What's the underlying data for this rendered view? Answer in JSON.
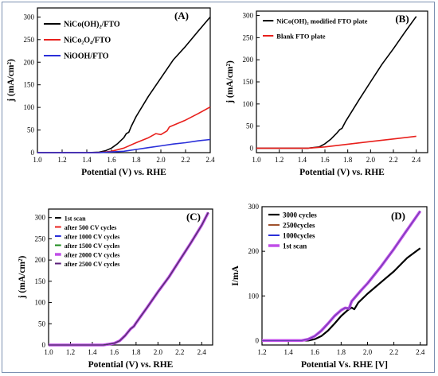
{
  "figure": {
    "border_color": "#7a8fb0"
  },
  "chart_data": [
    {
      "panel": "(A)",
      "type": "line",
      "xlabel": "Potential (V) vs. RHE",
      "ylabel": "j (mA/cm²)",
      "xlim": [
        1.0,
        2.4
      ],
      "ylim": [
        0,
        320
      ],
      "xticks": [
        "1.0",
        "1.2",
        "1.4",
        "1.6",
        "1.8",
        "2.0",
        "2.2",
        "2.4"
      ],
      "yticks": [
        "0",
        "50",
        "100",
        "150",
        "200",
        "250",
        "300"
      ],
      "legend_position": "top-left",
      "series": [
        {
          "name": "NiCo(OH)₂/FTO",
          "color": "#000000",
          "points": [
            [
              1.0,
              0
            ],
            [
              1.4,
              0
            ],
            [
              1.5,
              1
            ],
            [
              1.55,
              4
            ],
            [
              1.6,
              10
            ],
            [
              1.65,
              20
            ],
            [
              1.7,
              33
            ],
            [
              1.72,
              42
            ],
            [
              1.74,
              45
            ],
            [
              1.76,
              58
            ],
            [
              1.8,
              80
            ],
            [
              1.9,
              125
            ],
            [
              2.0,
              165
            ],
            [
              2.1,
              205
            ],
            [
              2.2,
              235
            ],
            [
              2.3,
              268
            ],
            [
              2.4,
              300
            ]
          ]
        },
        {
          "name": "NiCo₂O₄/FTO",
          "color": "#e8201c",
          "points": [
            [
              1.0,
              0
            ],
            [
              1.5,
              0
            ],
            [
              1.6,
              3
            ],
            [
              1.7,
              10
            ],
            [
              1.8,
              22
            ],
            [
              1.9,
              33
            ],
            [
              1.96,
              42
            ],
            [
              2.0,
              40
            ],
            [
              2.05,
              48
            ],
            [
              2.07,
              57
            ],
            [
              2.2,
              72
            ],
            [
              2.3,
              86
            ],
            [
              2.4,
              101
            ]
          ]
        },
        {
          "name": "NiOOH/FTO",
          "color": "#2a2fd9",
          "points": [
            [
              1.0,
              0
            ],
            [
              1.5,
              0
            ],
            [
              1.7,
              3
            ],
            [
              1.8,
              7
            ],
            [
              1.9,
              11
            ],
            [
              2.0,
              15
            ],
            [
              2.1,
              19
            ],
            [
              2.2,
              22
            ],
            [
              2.3,
              26
            ],
            [
              2.4,
              29
            ]
          ]
        }
      ]
    },
    {
      "panel": "(B)",
      "type": "line",
      "xlabel": "Potential (V) vs. RHE",
      "ylabel": "j (mA/cm²)",
      "xlim": [
        1.0,
        2.5
      ],
      "ylim": [
        -10,
        310
      ],
      "xticks": [
        "1.0",
        "1.2",
        "1.4",
        "1.6",
        "1.8",
        "2.0",
        "2.2",
        "2.4"
      ],
      "yticks": [
        "0",
        "50",
        "100",
        "150",
        "200",
        "250",
        "300"
      ],
      "legend_position": "top-left",
      "series": [
        {
          "name": "NiCo(OH)₂ modified FTO plate",
          "color": "#000000",
          "points": [
            [
              1.0,
              0
            ],
            [
              1.45,
              0
            ],
            [
              1.55,
              3
            ],
            [
              1.6,
              10
            ],
            [
              1.65,
              20
            ],
            [
              1.7,
              33
            ],
            [
              1.73,
              42
            ],
            [
              1.75,
              45
            ],
            [
              1.78,
              60
            ],
            [
              1.9,
              110
            ],
            [
              2.0,
              150
            ],
            [
              2.1,
              190
            ],
            [
              2.2,
              225
            ],
            [
              2.3,
              262
            ],
            [
              2.4,
              298
            ]
          ]
        },
        {
          "name": "Blank FTO plate",
          "color": "#e8201c",
          "points": [
            [
              1.0,
              0
            ],
            [
              1.45,
              0
            ],
            [
              1.6,
              3
            ],
            [
              1.8,
              9
            ],
            [
              2.0,
              15
            ],
            [
              2.2,
              21
            ],
            [
              2.4,
              27
            ]
          ]
        }
      ]
    },
    {
      "panel": "(C)",
      "type": "line",
      "xlabel": "Potential (V) vs. RHE",
      "ylabel": "j (mA/cm²)",
      "xlim": [
        1.0,
        2.5
      ],
      "ylim": [
        0,
        320
      ],
      "xticks": [
        "1.0",
        "1.2",
        "1.4",
        "1.6",
        "1.8",
        "2.0",
        "2.2",
        "2.4"
      ],
      "yticks": [
        "0",
        "50",
        "100",
        "150",
        "200",
        "250",
        "300"
      ],
      "legend_position": "top-left",
      "series": [
        {
          "name": "1st scan",
          "color": "#000000",
          "width": 1.2
        },
        {
          "name": "after 500 CV cycles",
          "color": "#e8201c",
          "width": 1.2
        },
        {
          "name": "after 1000 CV cycles",
          "color": "#2a2fd9",
          "width": 1.2
        },
        {
          "name": "after 1500 CV cycles",
          "color": "#1a8a1a",
          "width": 1.2
        },
        {
          "name": "after 2000 CV cycles",
          "color": "#c04ee8",
          "width": 3.5
        },
        {
          "name": "after 2500 CV cycles",
          "color": "#5a1e78",
          "width": 1.2
        }
      ],
      "shared_points": [
        [
          1.0,
          0
        ],
        [
          1.5,
          0
        ],
        [
          1.6,
          4
        ],
        [
          1.65,
          10
        ],
        [
          1.7,
          22
        ],
        [
          1.75,
          38
        ],
        [
          1.78,
          44
        ],
        [
          1.8,
          52
        ],
        [
          1.85,
          70
        ],
        [
          1.9,
          88
        ],
        [
          2.0,
          125
        ],
        [
          2.1,
          160
        ],
        [
          2.2,
          200
        ],
        [
          2.3,
          240
        ],
        [
          2.4,
          282
        ],
        [
          2.46,
          312
        ]
      ]
    },
    {
      "panel": "(D)",
      "type": "line",
      "xlabel": "Potential Vs. RHE [V]",
      "ylabel": "I/mA",
      "xlim": [
        1.2,
        2.45
      ],
      "ylim": [
        -10,
        300
      ],
      "xticks": [
        "1.2",
        "1.4",
        "1.6",
        "1.8",
        "2.0",
        "2.2",
        "2.4"
      ],
      "yticks": [
        "0",
        "100",
        "200",
        "300"
      ],
      "legend_position": "top-left",
      "series": [
        {
          "name": "3000 cycles",
          "color": "#000000",
          "width": 2.2,
          "points": [
            [
              1.2,
              0
            ],
            [
              1.55,
              0
            ],
            [
              1.6,
              3
            ],
            [
              1.65,
              10
            ],
            [
              1.7,
              22
            ],
            [
              1.75,
              38
            ],
            [
              1.8,
              55
            ],
            [
              1.85,
              68
            ],
            [
              1.88,
              74
            ],
            [
              1.9,
              70
            ],
            [
              1.93,
              85
            ],
            [
              2.0,
              105
            ],
            [
              2.1,
              130
            ],
            [
              2.2,
              155
            ],
            [
              2.3,
              185
            ],
            [
              2.4,
              207
            ]
          ]
        },
        {
          "name": "2500cycles",
          "color": "#a0522d",
          "width": 1.2
        },
        {
          "name": "1000cycles",
          "color": "#2a2fd9",
          "width": 1.2
        },
        {
          "name": "1st scan",
          "color": "#c04ee8",
          "width": 3.5
        }
      ],
      "shared_points": [
        [
          1.2,
          0
        ],
        [
          1.5,
          0
        ],
        [
          1.55,
          3
        ],
        [
          1.6,
          10
        ],
        [
          1.65,
          22
        ],
        [
          1.7,
          38
        ],
        [
          1.75,
          55
        ],
        [
          1.8,
          68
        ],
        [
          1.83,
          73
        ],
        [
          1.86,
          72
        ],
        [
          1.88,
          88
        ],
        [
          1.95,
          112
        ],
        [
          2.0,
          128
        ],
        [
          2.1,
          165
        ],
        [
          2.2,
          205
        ],
        [
          2.3,
          248
        ],
        [
          2.4,
          290
        ]
      ]
    }
  ]
}
